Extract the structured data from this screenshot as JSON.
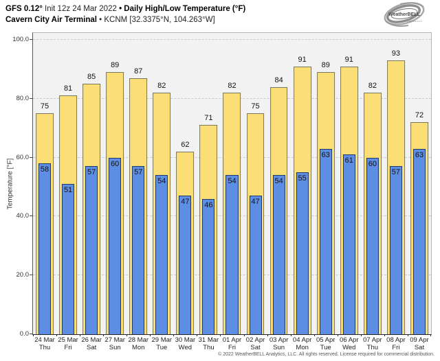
{
  "header": {
    "model": "GFS 0.12°",
    "init": " Init 12z 24 Mar 2022 ",
    "title": "• Daily High/Low Temperature (°F)",
    "station": "Cavern City Air Terminal",
    "station_detail": " • KCNM [32.3375°N, 104.263°W]",
    "logo_text": "WeatherBELL",
    "logo_sub": "Analytics LLC"
  },
  "chart_data": {
    "type": "bar",
    "title": "Daily High/Low Temperature (°F)",
    "x": [
      {
        "date": "24 Mar",
        "day": "Thu"
      },
      {
        "date": "25 Mar",
        "day": "Fri"
      },
      {
        "date": "26 Mar",
        "day": "Sat"
      },
      {
        "date": "27 Mar",
        "day": "Sun"
      },
      {
        "date": "28 Mar",
        "day": "Mon"
      },
      {
        "date": "29 Mar",
        "day": "Tue"
      },
      {
        "date": "30 Mar",
        "day": "Wed"
      },
      {
        "date": "31 Mar",
        "day": "Thu"
      },
      {
        "date": "01 Apr",
        "day": "Fri"
      },
      {
        "date": "02 Apr",
        "day": "Sat"
      },
      {
        "date": "03 Apr",
        "day": "Sun"
      },
      {
        "date": "04 Apr",
        "day": "Mon"
      },
      {
        "date": "05 Apr",
        "day": "Tue"
      },
      {
        "date": "06 Apr",
        "day": "Wed"
      },
      {
        "date": "07 Apr",
        "day": "Thu"
      },
      {
        "date": "08 Apr",
        "day": "Fri"
      },
      {
        "date": "09 Apr",
        "day": "Sat"
      }
    ],
    "series": [
      {
        "name": "High",
        "color": "#fbdf76",
        "border": "#77775f",
        "values": [
          75,
          81,
          85,
          89,
          87,
          82,
          62,
          71,
          82,
          75,
          84,
          91,
          89,
          91,
          82,
          93,
          72
        ]
      },
      {
        "name": "Low",
        "color": "#5e8ee4",
        "border": "#1b3a68",
        "values": [
          58,
          51,
          57,
          60,
          57,
          54,
          47,
          46,
          54,
          47,
          54,
          55,
          63,
          61,
          60,
          57,
          63
        ]
      }
    ],
    "ylabel": "Temperature [°F]",
    "ylim": [
      0,
      102.3
    ],
    "yticks": [
      {
        "v": 0,
        "label": "0.0"
      },
      {
        "v": 20,
        "label": "20.0"
      },
      {
        "v": 40,
        "label": "40.0"
      },
      {
        "v": 60,
        "label": "60.0"
      },
      {
        "v": 80,
        "label": "80.0"
      },
      {
        "v": 100,
        "label": "100.0"
      }
    ],
    "grid": {
      "horizontal": true,
      "style": "dashed",
      "color": "#c9c9c9"
    },
    "legend": "none",
    "plot_bg": "#f2f2f2"
  },
  "footer": {
    "copyright": "© 2022 WeatherBELL Analytics, LLC. All rights reserved. License required for commercial distribution."
  }
}
